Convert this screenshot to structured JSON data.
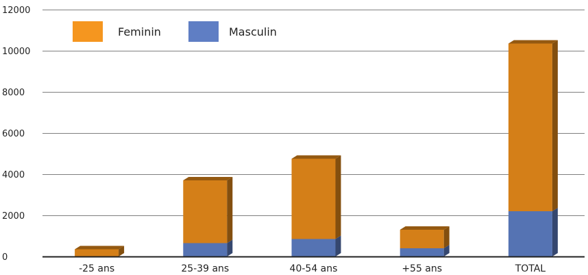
{
  "chart_data": {
    "type": "bar",
    "stacked": true,
    "categories": [
      "-25 ans",
      "25-39 ans",
      "40-54 ans",
      "+55 ans",
      "TOTAL"
    ],
    "series": [
      {
        "name": "Masculin",
        "values": [
          0,
          650,
          850,
          400,
          2200
        ],
        "color": "#5573b3"
      },
      {
        "name": "Feminin",
        "values": [
          350,
          3050,
          3900,
          900,
          8150
        ],
        "color": "#d47f18"
      }
    ],
    "yticks": [
      0,
      2000,
      4000,
      6000,
      8000,
      10000,
      12000
    ],
    "ylim": [
      0,
      12000
    ],
    "grid": true,
    "legend": {
      "position": "top-left",
      "order": [
        "Feminin",
        "Masculin"
      ]
    },
    "title": "",
    "xlabel": "",
    "ylabel": ""
  },
  "legend_items": [
    {
      "label": "Feminin",
      "color": "#f5961f"
    },
    {
      "label": "Masculin",
      "color": "#5f7ec4"
    }
  ]
}
